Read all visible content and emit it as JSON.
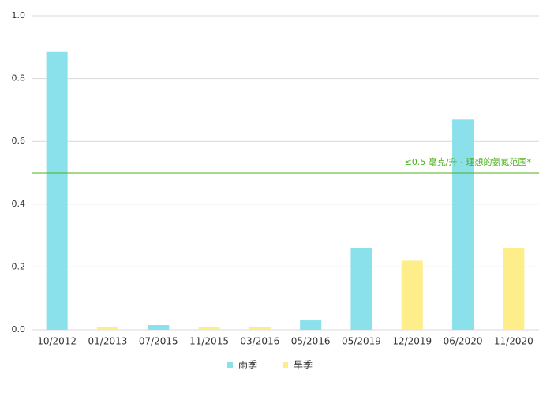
{
  "chart_data": {
    "type": "bar",
    "categories": [
      "10/2012",
      "01/2013",
      "07/2015",
      "11/2015",
      "03/2016",
      "05/2016",
      "05/2019",
      "12/2019",
      "06/2020",
      "11/2020"
    ],
    "series": [
      {
        "name": "雨季",
        "color": "#8ae0eb",
        "values": [
          0.885,
          null,
          0.015,
          null,
          null,
          0.03,
          0.26,
          null,
          0.67,
          null
        ]
      },
      {
        "name": "旱季",
        "color": "#fdee8a",
        "values": [
          null,
          0.01,
          null,
          0.01,
          0.01,
          null,
          null,
          0.22,
          null,
          0.26
        ]
      }
    ],
    "ylim": [
      0,
      1
    ],
    "yticks": [
      {
        "value": 0,
        "label": "0.0"
      },
      0.2,
      0.4,
      0.6,
      0.8,
      {
        "value": 1,
        "label": "1.0"
      }
    ],
    "grid": true,
    "reference_line": {
      "value": 0.5,
      "label": "≤0.5 毫克/升 - 理想的氨氮范围*",
      "color": "#4caf1a"
    },
    "legend": "bottom"
  }
}
